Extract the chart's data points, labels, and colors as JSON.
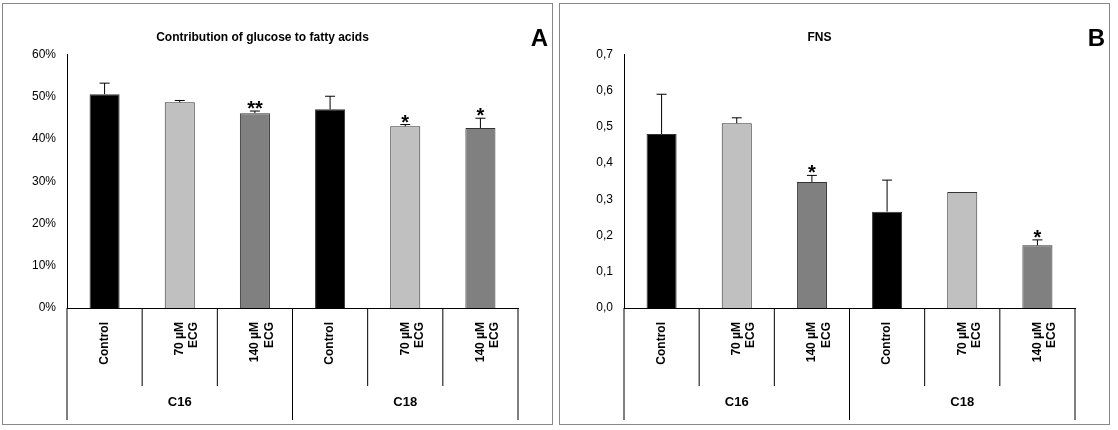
{
  "chart_data": [
    {
      "type": "bar",
      "title": "Contribution of glucose to fatty acids",
      "categories": [
        "Control",
        "70 µM\nECG",
        "140 µM\nECG",
        "Control",
        "70 µM\nECG",
        "140 µM\nECG"
      ],
      "values": [
        50.6,
        48.7,
        46.1,
        47.0,
        43.0,
        42.6
      ],
      "errors": [
        2.6,
        0.4,
        0.5,
        3.1,
        0.4,
        2.3
      ],
      "colors": [
        "#000000",
        "#c0c0c0",
        "#808080",
        "#000000",
        "#c0c0c0",
        "#808080"
      ],
      "ylim": [
        0,
        60
      ],
      "yticks": [
        {
          "value": 0,
          "label": "0%"
        },
        {
          "value": 10,
          "label": "10%"
        },
        {
          "value": 20,
          "label": "20%"
        },
        {
          "value": 30,
          "label": "30%"
        },
        {
          "value": 40,
          "label": "40%"
        },
        {
          "value": 50,
          "label": "50%"
        },
        {
          "value": 60,
          "label": "60%"
        }
      ],
      "value_labels": [
        null,
        null,
        "**",
        null,
        "*",
        "*"
      ],
      "annotations": [
        "A",
        "C16",
        "C18"
      ]
    },
    {
      "type": "bar",
      "title": "FNS",
      "categories": [
        "Control",
        "70 µM\nECG",
        "140 µM\nECG",
        "Control",
        "70 µM\nECG",
        "140 µM\nECG"
      ],
      "values": [
        0.48,
        0.51,
        0.348,
        0.266,
        0.32,
        0.173
      ],
      "errors": [
        0.11,
        0.015,
        0.018,
        0.087,
        null,
        0.015
      ],
      "colors": [
        "#000000",
        "#c0c0c0",
        "#808080",
        "#000000",
        "#c0c0c0",
        "#808080"
      ],
      "ylim": [
        0,
        0.7
      ],
      "yticks": [
        {
          "value": 0,
          "label": "0,0"
        },
        {
          "value": 0.1,
          "label": "0,1"
        },
        {
          "value": 0.2,
          "label": "0,2"
        },
        {
          "value": 0.3,
          "label": "0,3"
        },
        {
          "value": 0.4,
          "label": "0,4"
        },
        {
          "value": 0.5,
          "label": "0,5"
        },
        {
          "value": 0.6,
          "label": "0,6"
        },
        {
          "value": 0.7,
          "label": "0,7"
        }
      ],
      "value_labels": [
        null,
        null,
        "*",
        null,
        null,
        "*"
      ],
      "annotations": [
        "B",
        "C16",
        "C18"
      ]
    }
  ]
}
